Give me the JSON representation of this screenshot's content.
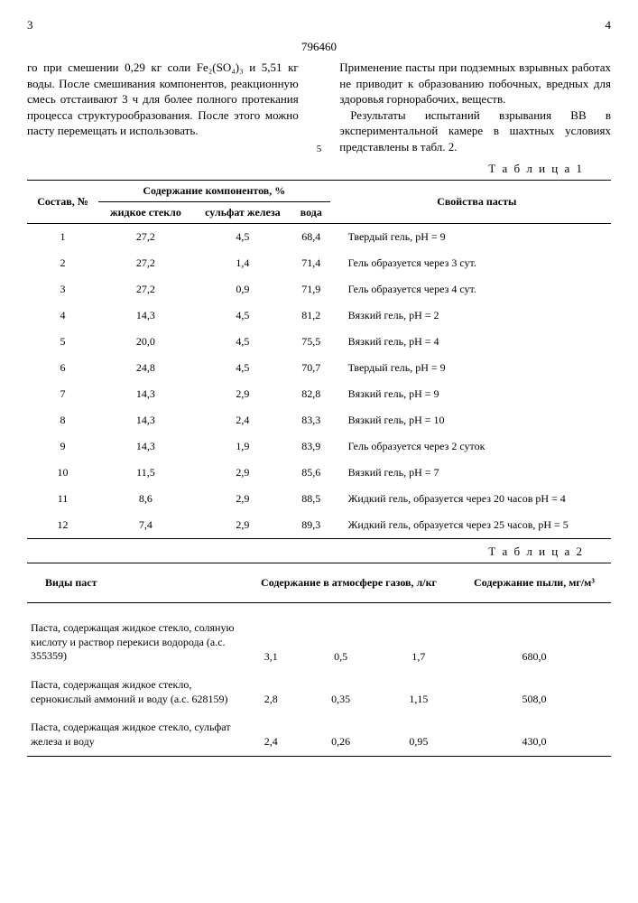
{
  "header": {
    "left_page": "3",
    "right_page": "4",
    "doc_number": "796460"
  },
  "text": {
    "left_para": "го при смешении 0,29 кг соли Fe₂(SO₄)₃ и 5,51 кг воды. После смешивания компонентов, реакционную смесь отстаивают 3 ч для более полного протекания процесса структурообразования. После этого можно пасту перемещать и использовать.",
    "right_para1": "Применение пасты при подземных взрывных работах не приводит к образованию побочных, вредных для здоровья горнорабочих, веществ.",
    "right_para2": "Результаты испытаний взрывания ВВ в экспериментальной камере в шахтных условиях представлены в табл. 2.",
    "marker": "5"
  },
  "table1": {
    "label": "Т а б л и ц а 1",
    "head": {
      "composition": "Состав, №",
      "components_group": "Содержание компонентов, %",
      "c1": "жидкое стекло",
      "c2": "сульфат железа",
      "c3": "вода",
      "props": "Свойства пасты"
    },
    "rows": [
      {
        "n": "1",
        "a": "27,2",
        "b": "4,5",
        "c": "68,4",
        "p": "Твердый гель, pH = 9"
      },
      {
        "n": "2",
        "a": "27,2",
        "b": "1,4",
        "c": "71,4",
        "p": "Гель образуется через 3 сут."
      },
      {
        "n": "3",
        "a": "27,2",
        "b": "0,9",
        "c": "71,9",
        "p": "Гель образуется через 4 сут."
      },
      {
        "n": "4",
        "a": "14,3",
        "b": "4,5",
        "c": "81,2",
        "p": "Вязкий гель, pH = 2"
      },
      {
        "n": "5",
        "a": "20,0",
        "b": "4,5",
        "c": "75,5",
        "p": "Вязкий гель, pH = 4"
      },
      {
        "n": "6",
        "a": "24,8",
        "b": "4,5",
        "c": "70,7",
        "p": "Твердый гель, pH = 9"
      },
      {
        "n": "7",
        "a": "14,3",
        "b": "2,9",
        "c": "82,8",
        "p": "Вязкий гель, pH = 9"
      },
      {
        "n": "8",
        "a": "14,3",
        "b": "2,4",
        "c": "83,3",
        "p": "Вязкий гель, pH = 10"
      },
      {
        "n": "9",
        "a": "14,3",
        "b": "1,9",
        "c": "83,9",
        "p": "Гель образуется через 2 суток"
      },
      {
        "n": "10",
        "a": "11,5",
        "b": "2,9",
        "c": "85,6",
        "p": "Вязкий гель, pH = 7"
      },
      {
        "n": "11",
        "a": "8,6",
        "b": "2,9",
        "c": "88,5",
        "p": "Жидкий гель, образуется через 20 часов pH = 4"
      },
      {
        "n": "12",
        "a": "7,4",
        "b": "2,9",
        "c": "89,3",
        "p": "Жидкий гель, образуется через 25 часов, pH = 5"
      }
    ]
  },
  "table2": {
    "label": "Т а б л и ц а 2",
    "head": {
      "pastes": "Виды паст",
      "gases": "Содержание в атмосфере газов, л/кг",
      "dust": "Содержание пыли, мг/м³"
    },
    "rows": [
      {
        "desc": "Паста, содержащая жидкое стекло, соляную кислоту и раствор перекиси водорода (а.с. 355359)",
        "v1": "3,1",
        "v2": "0,5",
        "v3": "1,7",
        "dust": "680,0"
      },
      {
        "desc": "Паста, содержащая жидкое стекло, сернокислый аммоний и воду (а.с. 628159)",
        "v1": "2,8",
        "v2": "0,35",
        "v3": "1,15",
        "dust": "508,0"
      },
      {
        "desc": "Паста, содержащая жидкое стекло, сульфат железа и воду",
        "v1": "2,4",
        "v2": "0,26",
        "v3": "0,95",
        "dust": "430,0"
      }
    ]
  }
}
